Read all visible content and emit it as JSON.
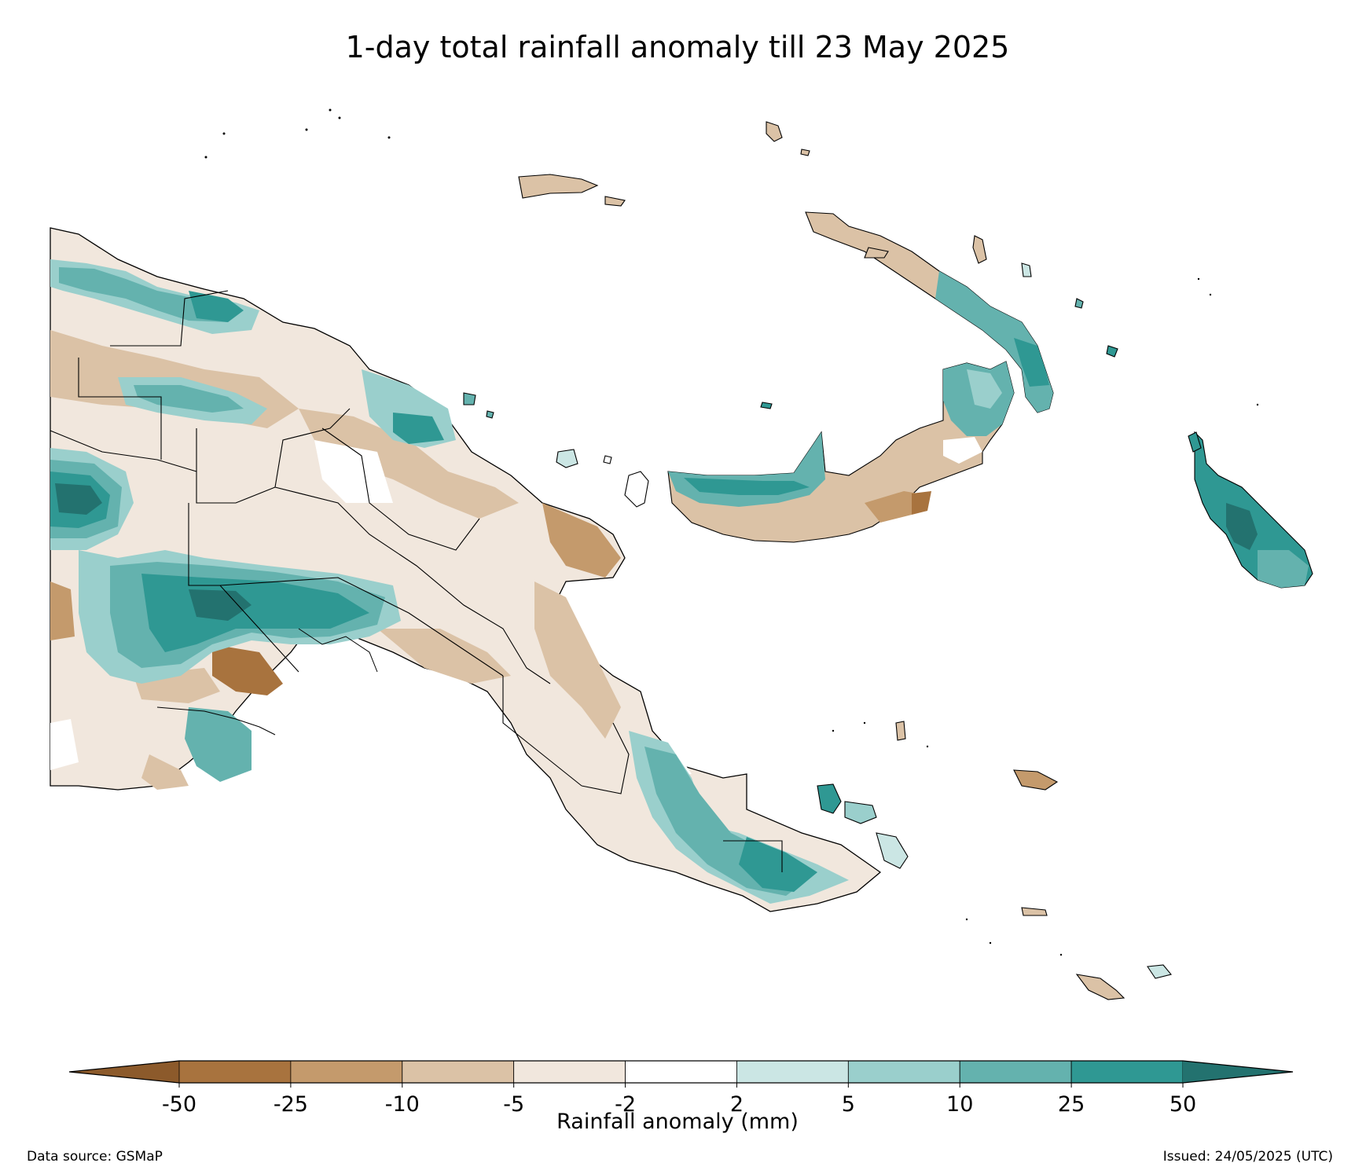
{
  "title": "1-day total rainfall anomaly till 23 May 2025",
  "colorbar": {
    "label": "Rainfall anomaly (mm)",
    "ticks": [
      "-50",
      "-25",
      "-10",
      "-5",
      "-2",
      "2",
      "5",
      "10",
      "25",
      "50"
    ],
    "bins": [
      {
        "range": "< -50",
        "color": "#8c5a2b"
      },
      {
        "range": "-50 to -25",
        "color": "#a8733e"
      },
      {
        "range": "-25 to -10",
        "color": "#c49a6c"
      },
      {
        "range": "-10 to -5",
        "color": "#dbc2a6"
      },
      {
        "range": "-5 to -2",
        "color": "#f1e7dd"
      },
      {
        "range": "-2 to 2",
        "color": "#ffffff"
      },
      {
        "range": "2 to 5",
        "color": "#cbe6e4"
      },
      {
        "range": "5 to 10",
        "color": "#9acfcc"
      },
      {
        "range": "10 to 25",
        "color": "#64b2ae"
      },
      {
        "range": "25 to 50",
        "color": "#2f9893"
      },
      {
        "range": "> 50",
        "color": "#23726f"
      }
    ]
  },
  "footer": {
    "source": "Data source: GSMaP",
    "issued": "Issued: 24/05/2025 (UTC)"
  }
}
